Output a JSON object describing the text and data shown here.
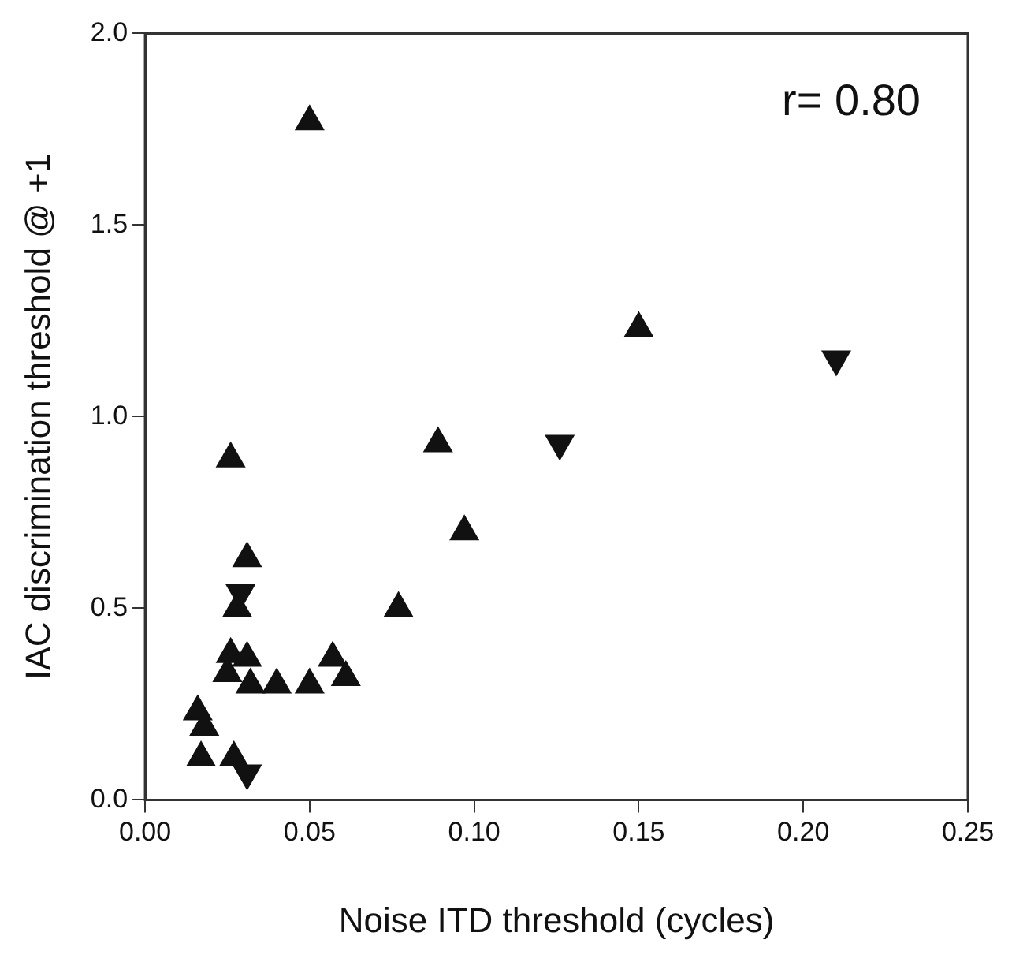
{
  "chart_data": {
    "type": "scatter",
    "xlabel": "Noise ITD threshold (cycles)",
    "ylabel": "IAC discrimination threshold @ +1",
    "annotations": [
      "r= 0.80"
    ],
    "xlim": [
      0,
      0.25
    ],
    "xticks": [
      {
        "value": 0,
        "label": "0.00"
      },
      {
        "value": 0.05,
        "label": "0.05"
      },
      {
        "value": 0.1,
        "label": "0.10"
      },
      {
        "value": 0.15,
        "label": "0.15"
      },
      {
        "value": 0.2,
        "label": "0.20"
      },
      {
        "value": 0.25,
        "label": "0.25"
      }
    ],
    "ylim": [
      0,
      2
    ],
    "yticks": [
      {
        "value": 0,
        "label": "0.0"
      },
      {
        "value": 0.5,
        "label": "0.5"
      },
      {
        "value": 1,
        "label": "1.0"
      },
      {
        "value": 1.5,
        "label": "1.5"
      },
      {
        "value": 2,
        "label": "2.0"
      }
    ],
    "grid": false,
    "legend": false,
    "marker": "triangle",
    "series": [
      {
        "color": "#111111",
        "x": [
          0.05,
          0.026,
          0.089,
          0.15,
          0.097,
          0.077,
          0.031,
          0.028,
          0.026,
          0.031,
          0.025,
          0.032,
          0.04,
          0.05,
          0.057,
          0.061,
          0.016,
          0.018,
          0.017,
          0.027
        ],
        "values": [
          1.77,
          0.89,
          0.93,
          1.23,
          0.7,
          0.5,
          0.63,
          0.5,
          0.38,
          0.37,
          0.33,
          0.3,
          0.3,
          0.3,
          0.37,
          0.32,
          0.23,
          0.19,
          0.11,
          0.11
        ]
      },
      {
        "color": "#111111",
        "x": [
          0.21,
          0.126,
          0.029,
          0.031
        ],
        "values": [
          1.15,
          0.93,
          0.54,
          0.07
        ]
      }
    ]
  }
}
